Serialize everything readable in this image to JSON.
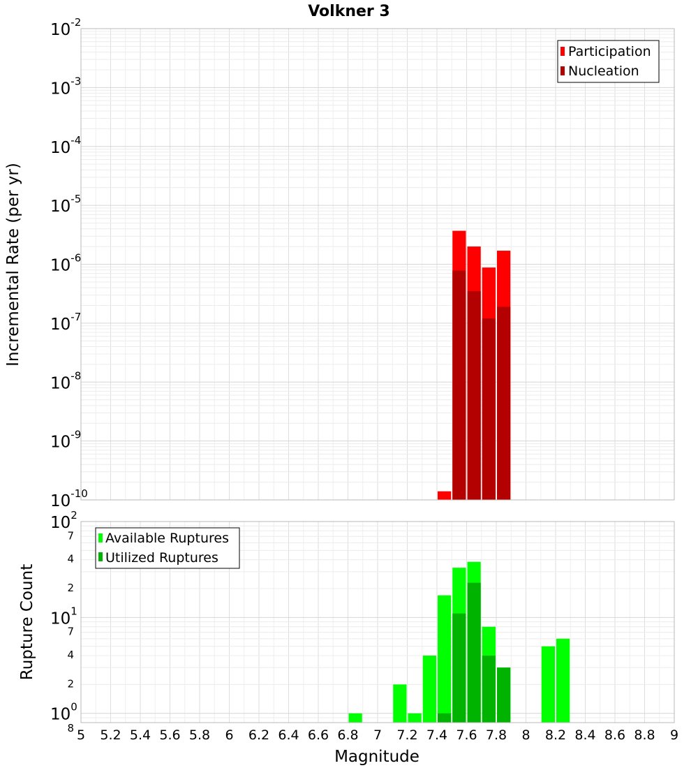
{
  "colors": {
    "participation": "#ff0000",
    "nucleation": "#b30000",
    "available": "#00ff00",
    "utilized": "#00b300",
    "grid": "#e2e2e2",
    "plot_border": "#b8b8b8"
  },
  "chart_data": [
    {
      "type": "bar",
      "title": "Volkner 3",
      "xlabel": "Magnitude",
      "ylabel": "Incremental Rate (per yr)",
      "yscale": "log",
      "xlim": [
        5,
        9
      ],
      "ylim": [
        1e-10,
        0.01
      ],
      "bin_width": 0.1,
      "legend_position": "top-right",
      "legend": [
        "Participation",
        "Nucleation"
      ],
      "x_ticks": [
        "5",
        "5.2",
        "5.4",
        "5.6",
        "5.8",
        "6",
        "6.2",
        "6.4",
        "6.6",
        "6.8",
        "7",
        "7.2",
        "7.4",
        "7.6",
        "7.8",
        "8",
        "8.2",
        "8.4",
        "8.6",
        "8.8",
        "9"
      ],
      "y_decades": [
        {
          "base": "10",
          "exp": "-10",
          "value": 1e-10
        },
        {
          "base": "10",
          "exp": "-9",
          "value": 1e-09
        },
        {
          "base": "10",
          "exp": "-8",
          "value": 1e-08
        },
        {
          "base": "10",
          "exp": "-7",
          "value": 1e-07
        },
        {
          "base": "10",
          "exp": "-6",
          "value": 1e-06
        },
        {
          "base": "10",
          "exp": "-5",
          "value": 1e-05
        },
        {
          "base": "10",
          "exp": "-4",
          "value": 0.0001
        },
        {
          "base": "10",
          "exp": "-3",
          "value": 0.001
        },
        {
          "base": "10",
          "exp": "-2",
          "value": 0.01
        }
      ],
      "series": [
        {
          "name": "Participation",
          "x": [
            7.45,
            7.55,
            7.65,
            7.75,
            7.85
          ],
          "values": [
            1.4e-10,
            3.7e-06,
            2e-06,
            8.8e-07,
            1.7e-06
          ]
        },
        {
          "name": "Nucleation",
          "x": [
            7.45,
            7.55,
            7.65,
            7.75,
            7.85
          ],
          "values": [
            0,
            7.8e-07,
            3.5e-07,
            1.2e-07,
            1.9e-07
          ]
        }
      ]
    },
    {
      "type": "bar",
      "title": "",
      "xlabel": "Magnitude",
      "ylabel": "Rupture Count",
      "yscale": "log",
      "xlim": [
        5,
        9
      ],
      "ylim": [
        0.8,
        100
      ],
      "bin_width": 0.1,
      "legend_position": "top-left",
      "legend": [
        "Available Ruptures",
        "Utilized Ruptures"
      ],
      "x_ticks": [
        "5",
        "5.2",
        "5.4",
        "5.6",
        "5.8",
        "6",
        "6.2",
        "6.4",
        "6.6",
        "6.8",
        "7",
        "7.2",
        "7.4",
        "7.6",
        "7.8",
        "8",
        "8.2",
        "8.4",
        "8.6",
        "8.8",
        "9"
      ],
      "y_decades": [
        {
          "base": "10",
          "exp": "0",
          "value": 1
        },
        {
          "base": "10",
          "exp": "1",
          "value": 10
        },
        {
          "base": "10",
          "exp": "2",
          "value": 100
        }
      ],
      "y_minor_ticks": [
        {
          "label": "8",
          "value": 0.8
        },
        {
          "label": "2",
          "value": 2
        },
        {
          "label": "4",
          "value": 4
        },
        {
          "label": "7",
          "value": 7
        },
        {
          "label": "2",
          "value": 20
        },
        {
          "label": "4",
          "value": 40
        },
        {
          "label": "7",
          "value": 70
        }
      ],
      "series": [
        {
          "name": "Available Ruptures",
          "x": [
            6.85,
            7.15,
            7.25,
            7.35,
            7.45,
            7.55,
            7.65,
            7.75,
            7.85,
            8.15,
            8.25
          ],
          "values": [
            1,
            2,
            1,
            4,
            17,
            33,
            38,
            8,
            3,
            5,
            6
          ]
        },
        {
          "name": "Utilized Ruptures",
          "x": [
            6.85,
            7.15,
            7.25,
            7.35,
            7.45,
            7.55,
            7.65,
            7.75,
            7.85,
            8.15,
            8.25
          ],
          "values": [
            0,
            0,
            0,
            0,
            1,
            11,
            23,
            4,
            3,
            0,
            0
          ]
        }
      ]
    }
  ]
}
